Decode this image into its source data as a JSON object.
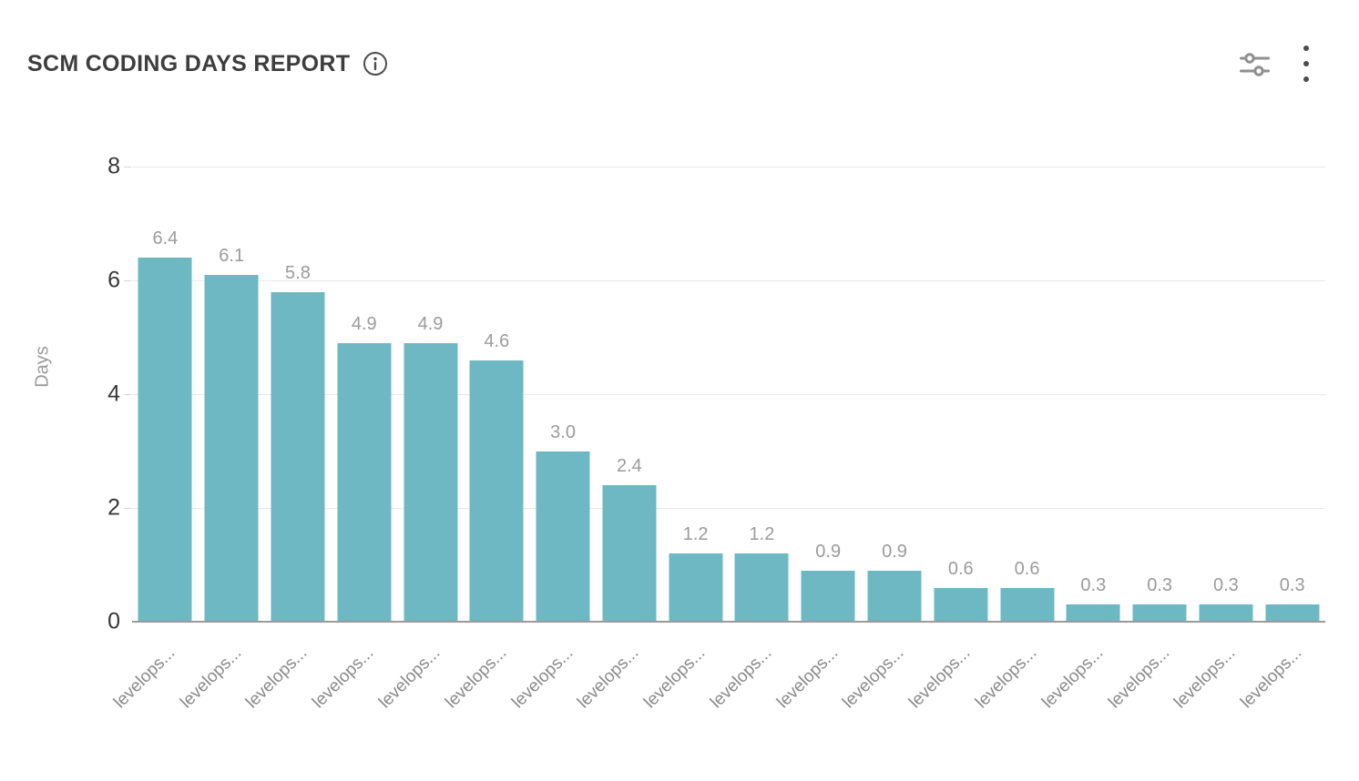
{
  "header": {
    "title": "SCM CODING DAYS REPORT"
  },
  "icons": {
    "info": "info-circle-icon",
    "settings": "filter-sliders-icon",
    "menu": "kebab-menu-icon"
  },
  "colors": {
    "bar": "#6db8c2",
    "grid_line": "#e9e9e9",
    "axis_line": "#9a9a9a",
    "value_label": "#9b9b9b",
    "y_tick_label": "#383838",
    "x_tick_label": "#8a8a8a",
    "title_text": "#3d3d3d",
    "icon_gray": "#8f8f8f",
    "icon_dark": "#4c4c4c"
  },
  "chart_data": {
    "type": "bar",
    "title": "SCM CODING DAYS REPORT",
    "xlabel": "",
    "ylabel": "Days",
    "ylim": [
      0,
      8
    ],
    "yticks": [
      0,
      2,
      4,
      6,
      8
    ],
    "grid": true,
    "legend": false,
    "bar_color": "#6db8c2",
    "categories": [
      "levelops...",
      "levelops...",
      "levelops...",
      "levelops...",
      "levelops...",
      "levelops...",
      "levelops...",
      "levelops...",
      "levelops...",
      "levelops...",
      "levelops...",
      "levelops...",
      "levelops...",
      "levelops...",
      "levelops...",
      "levelops...",
      "levelops...",
      "levelops..."
    ],
    "values": [
      6.4,
      6.1,
      5.8,
      4.9,
      4.9,
      4.6,
      3.0,
      2.4,
      1.2,
      1.2,
      0.9,
      0.9,
      0.6,
      0.6,
      0.3,
      0.3,
      0.3,
      0.3
    ],
    "value_labels": [
      "6.4",
      "6.1",
      "5.8",
      "4.9",
      "4.9",
      "4.6",
      "3.0",
      "2.4",
      "1.2",
      "1.2",
      "0.9",
      "0.9",
      "0.6",
      "0.6",
      "0.3",
      "0.3",
      "0.3",
      "0.3"
    ]
  }
}
